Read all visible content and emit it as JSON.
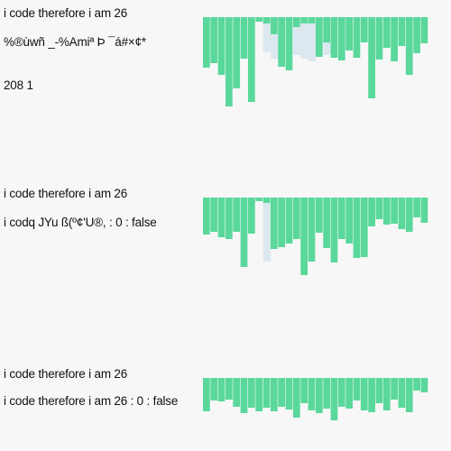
{
  "panels": [
    {
      "line1": "i code therefore i am 26",
      "line2": "%®ùwñ _-%Amiª Þ ¯á#×¢*",
      "line3": "208 1",
      "colors": {
        "green": "#5ad89b",
        "shadow": "#dce8ef"
      },
      "ghost_values": [
        0,
        0,
        0,
        0,
        0,
        0,
        0,
        0,
        13,
        20,
        0,
        0,
        16,
        20,
        23,
        0,
        16,
        0,
        10,
        0,
        0,
        0,
        0,
        0,
        0,
        0,
        0,
        0,
        0,
        0
      ],
      "bar_values": [
        56,
        51,
        64,
        99,
        79,
        46,
        94,
        5,
        7,
        19,
        55,
        59,
        11,
        7,
        7,
        44,
        28,
        45,
        48,
        37,
        45,
        28,
        90,
        47,
        34,
        49,
        32,
        64,
        40,
        29
      ]
    },
    {
      "line1": "i code therefore i am 26",
      "line2": "i codq JYu ß(º¢'U®, : 0 : false",
      "line3": "",
      "colors": {
        "green": "#5ad89b",
        "shadow": "#dce8ef"
      },
      "ghost_values": [
        0,
        0,
        0,
        0,
        0,
        0,
        0,
        0,
        45,
        0,
        0,
        0,
        0,
        0,
        0,
        0,
        0,
        0,
        0,
        0,
        0,
        0,
        0,
        0,
        0,
        0,
        0,
        0,
        0,
        0
      ],
      "bar_values": [
        41,
        38,
        44,
        46,
        38,
        77,
        40,
        4,
        6,
        57,
        55,
        51,
        46,
        86,
        71,
        39,
        56,
        72,
        46,
        51,
        67,
        66,
        32,
        24,
        30,
        29,
        35,
        38,
        22,
        28
      ]
    },
    {
      "line1": "i code therefore i am 26",
      "line2": "i code therefore i am 26 : 0 : false",
      "line3": "",
      "colors": {
        "green": "#5ad89b",
        "shadow": "#dce8ef"
      },
      "ghost_values": [
        0,
        0,
        0,
        0,
        0,
        0,
        0,
        0,
        0,
        0,
        0,
        0,
        0,
        0,
        0,
        0,
        0,
        0,
        0,
        0,
        0,
        0,
        0,
        0,
        0,
        0,
        0,
        0,
        0,
        0
      ],
      "bar_values": [
        37,
        25,
        26,
        24,
        32,
        39,
        33,
        37,
        33,
        37,
        32,
        35,
        44,
        28,
        36,
        39,
        34,
        47,
        32,
        34,
        25,
        36,
        38,
        28,
        36,
        24,
        33,
        38,
        14,
        16
      ]
    }
  ]
}
